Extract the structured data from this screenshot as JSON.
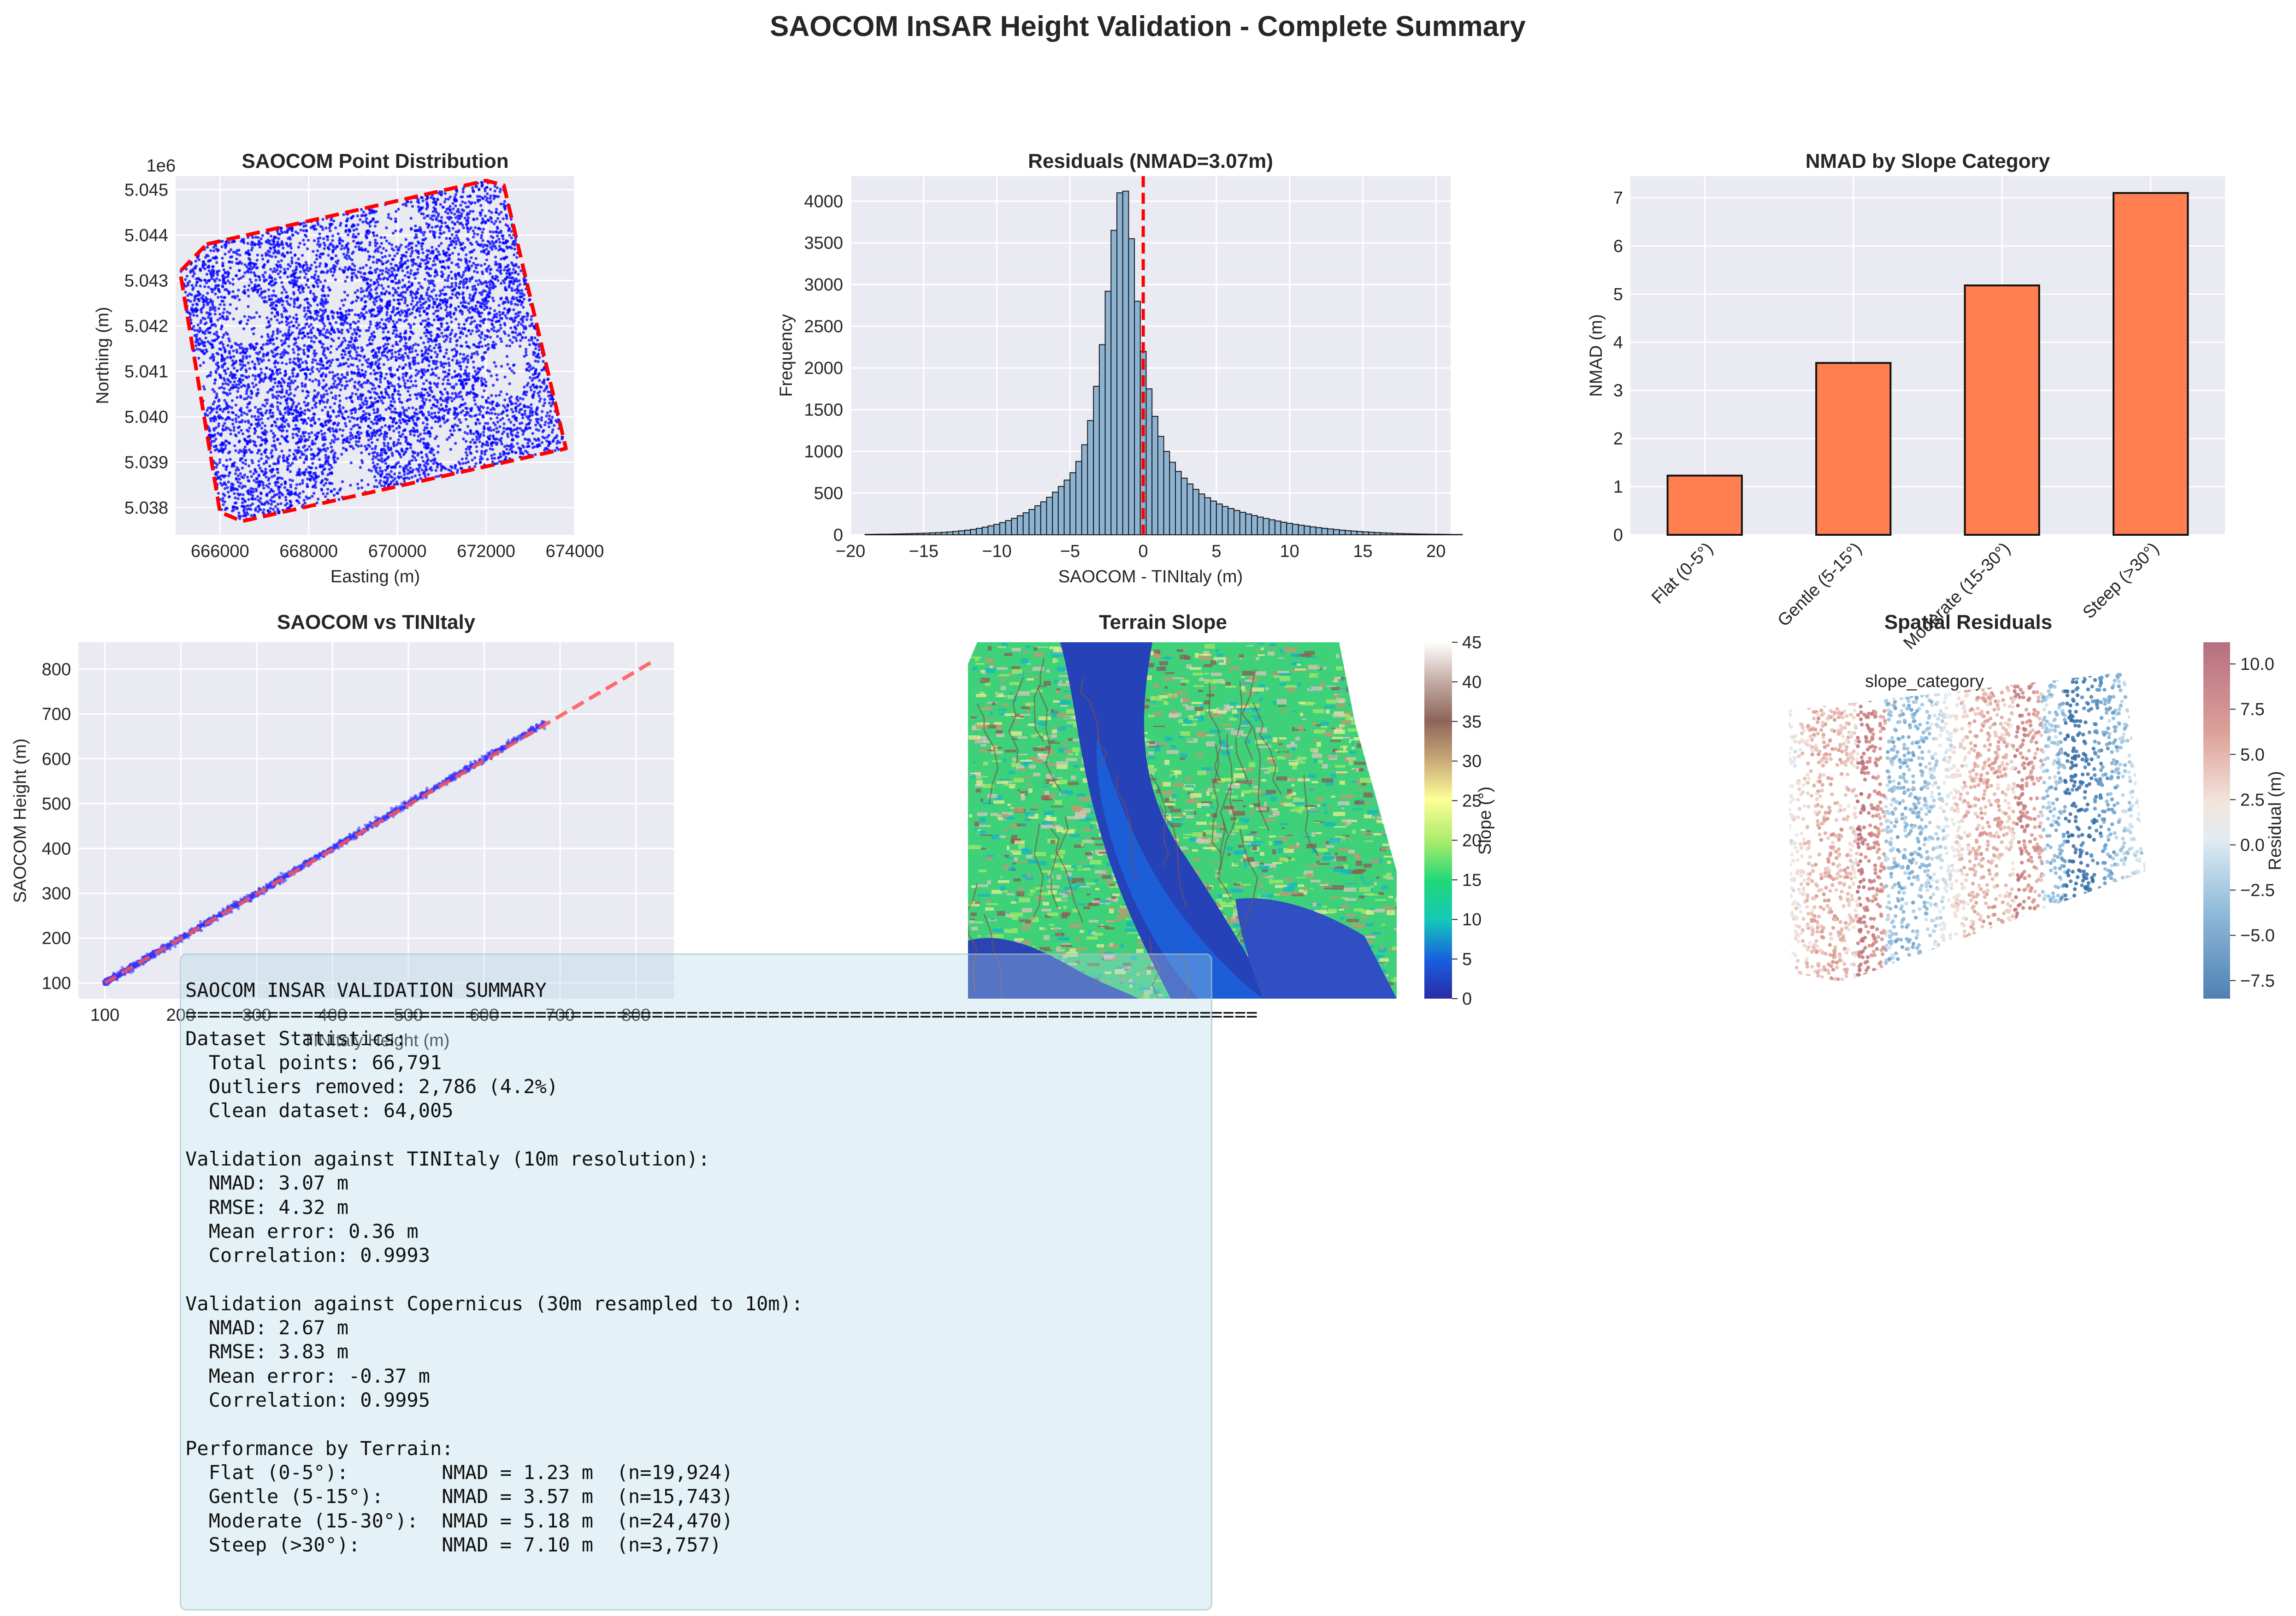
{
  "suptitle": "SAOCOM InSAR Height Validation - Complete Summary",
  "chart_data": [
    {
      "type": "scatter",
      "title": "SAOCOM Point Distribution",
      "xlabel": "Easting (m)",
      "ylabel": "Northing (m)",
      "offset_label": "1e6",
      "xlim": [
        665000,
        674000
      ],
      "ylim": [
        5037400,
        5045300
      ],
      "xticks": [
        666000,
        668000,
        670000,
        672000,
        674000
      ],
      "xtick_labels": [
        "666000",
        "668000",
        "670000",
        "672000",
        "674000"
      ],
      "yticks": [
        5038000,
        5039000,
        5040000,
        5041000,
        5042000,
        5043000,
        5044000,
        5045000
      ],
      "ytick_labels": [
        "5.038",
        "5.039",
        "5.040",
        "5.041",
        "5.042",
        "5.043",
        "5.044",
        "5.045"
      ],
      "point_color": "#0000ff",
      "hull_color": "#ff0000",
      "hull": [
        [
          665700,
          5043800
        ],
        [
          672000,
          5045200
        ],
        [
          672400,
          5045100
        ],
        [
          673800,
          5039300
        ],
        [
          666500,
          5037700
        ],
        [
          666000,
          5037900
        ],
        [
          665100,
          5043200
        ]
      ]
    },
    {
      "type": "bar",
      "title": "Residuals (NMAD=3.07m)",
      "xlabel": "SAOCOM - TINItaly (m)",
      "ylabel": "Frequency",
      "xlim": [
        -20,
        21
      ],
      "ylim": [
        0,
        4300
      ],
      "xticks": [
        -20,
        -15,
        -10,
        -5,
        0,
        5,
        10,
        15,
        20
      ],
      "xtick_labels": [
        "−20",
        "−15",
        "−10",
        "−5",
        "0",
        "5",
        "10",
        "15",
        "20"
      ],
      "yticks": [
        0,
        500,
        1000,
        1500,
        2000,
        2500,
        3000,
        3500,
        4000
      ],
      "bin_start": -19,
      "bin_width": 0.4,
      "counts": [
        5,
        6,
        7,
        8,
        9,
        10,
        12,
        14,
        16,
        18,
        20,
        23,
        26,
        30,
        35,
        41,
        48,
        56,
        66,
        78,
        92,
        108,
        126,
        147,
        171,
        198,
        229,
        264,
        304,
        348,
        396,
        450,
        511,
        579,
        656,
        745,
        880,
        1080,
        1370,
        1780,
        2280,
        2920,
        3650,
        4100,
        4120,
        3550,
        2800,
        2200,
        1750,
        1420,
        1180,
        1000,
        870,
        760,
        680,
        610,
        545,
        490,
        445,
        405,
        370,
        340,
        315,
        292,
        270,
        250,
        231,
        213,
        196,
        180,
        165,
        151,
        138,
        126,
        115,
        105,
        95,
        86,
        78,
        70,
        63,
        56,
        50,
        45,
        40,
        35,
        31,
        27,
        24,
        21,
        18,
        16,
        14,
        12,
        10,
        9,
        8,
        7,
        6,
        5,
        4,
        4
      ],
      "bar_color": "#8db3d3",
      "vline_x": 0,
      "vline_color": "#ff0000"
    },
    {
      "type": "bar",
      "title": "NMAD by Slope Category",
      "ylabel": "NMAD (m)",
      "categories": [
        "Flat (0-5°)",
        "Gentle (5-15°)",
        "Moderate (15-30°)",
        "Steep (>30°)"
      ],
      "values": [
        1.23,
        3.57,
        5.18,
        7.1
      ],
      "ylim": [
        0,
        7.45
      ],
      "yticks": [
        0,
        1,
        2,
        3,
        4,
        5,
        6,
        7
      ],
      "bar_color": "#ff7f50",
      "xlabel_overlap": "slope_category"
    },
    {
      "type": "scatter",
      "title": "SAOCOM vs TINItaly",
      "xlabel": "TINItaly Height (m)",
      "ylabel": "SAOCOM Height (m)",
      "xlim": [
        65,
        850
      ],
      "ylim": [
        65,
        860
      ],
      "xticks": [
        100,
        200,
        300,
        400,
        500,
        600,
        700,
        800
      ],
      "yticks": [
        100,
        200,
        300,
        400,
        500,
        600,
        700,
        800
      ],
      "line": [
        [
          100,
          100
        ],
        [
          820,
          815
        ]
      ],
      "point_color": "#3333ff",
      "line_color": "#ff5555"
    },
    {
      "type": "heatmap",
      "title": "Terrain Slope",
      "colorbar_label": "Slope (°)",
      "colorbar_ticks": [
        0,
        5,
        10,
        15,
        20,
        25,
        30,
        35,
        40,
        45
      ],
      "colorbar_range": [
        0,
        45
      ]
    },
    {
      "type": "scatter",
      "title": "Spatial Residuals",
      "colorbar_label": "Residual (m)",
      "colorbar_ticks": [
        -7.5,
        -5.0,
        -2.5,
        0.0,
        2.5,
        5.0,
        7.5,
        10.0
      ],
      "colorbar_tick_labels": [
        "−7.5",
        "−5.0",
        "−2.5",
        "0.0",
        "2.5",
        "5.0",
        "7.5",
        "10.0"
      ],
      "colorbar_range": [
        -8.5,
        11.2
      ]
    }
  ],
  "summary_text": "SAOCOM INSAR VALIDATION SUMMARY\n============================================================================================\nDataset Statistics:\n  Total points: 66,791\n  Outliers removed: 2,786 (4.2%)\n  Clean dataset: 64,005\n\nValidation against TINItaly (10m resolution):\n  NMAD: 3.07 m\n  RMSE: 4.32 m\n  Mean error: 0.36 m\n  Correlation: 0.9993\n\nValidation against Copernicus (30m resampled to 10m):\n  NMAD: 2.67 m\n  RMSE: 3.83 m\n  Mean error: -0.37 m\n  Correlation: 0.9995\n\nPerformance by Terrain:\n  Flat (0-5°):        NMAD = 1.23 m  (n=19,924)\n  Gentle (5-15°):     NMAD = 3.57 m  (n=15,743)\n  Moderate (15-30°):  NMAD = 5.18 m  (n=24,470)\n  Steep (>30°):       NMAD = 7.10 m  (n=3,757)"
}
